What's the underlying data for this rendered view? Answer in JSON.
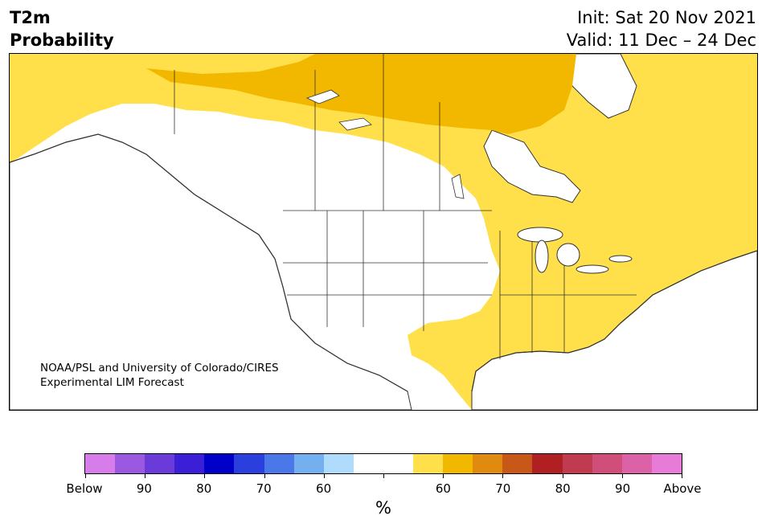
{
  "title": {
    "line1": "T2m",
    "line2": "Probability"
  },
  "init": {
    "line1": "Init: Sat 20 Nov 2021",
    "line2": "Valid: 11 Dec – 24 Dec"
  },
  "credit": {
    "line1": "NOAA/PSL and University of Colorado/CIRES",
    "line2": "Experimental LIM Forecast"
  },
  "colorbar": {
    "colors": [
      "#d67de9",
      "#9b58e0",
      "#6a3bd8",
      "#3a1fd6",
      "#0000c8",
      "#2a3fdd",
      "#4a78e8",
      "#74b0f0",
      "#aedcfa",
      "#ffffff",
      "#ffffff",
      "#ffe04a",
      "#f2b800",
      "#e08a10",
      "#c85818",
      "#b01f22",
      "#c03a50",
      "#d04e7a",
      "#dc62a8",
      "#e87ad8"
    ],
    "ticks": [
      {
        "label": "Below",
        "frac": 0
      },
      {
        "label": "90",
        "frac": 0.1
      },
      {
        "label": "80",
        "frac": 0.2
      },
      {
        "label": "70",
        "frac": 0.3
      },
      {
        "label": "60",
        "frac": 0.4
      },
      {
        "label": "",
        "frac": 0.5
      },
      {
        "label": "60",
        "frac": 0.6
      },
      {
        "label": "70",
        "frac": 0.7
      },
      {
        "label": "80",
        "frac": 0.8
      },
      {
        "label": "90",
        "frac": 0.9
      },
      {
        "label": "Above",
        "frac": 1
      }
    ],
    "units": "%"
  },
  "map": {
    "colors": {
      "light": "#ffe04a",
      "medium": "#f2b800",
      "land": "#ffffff",
      "border": "#333333"
    }
  }
}
